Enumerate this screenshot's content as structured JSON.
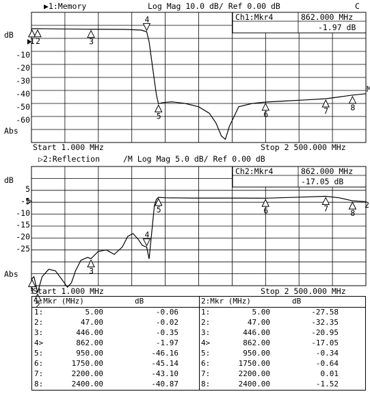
{
  "ch1": {
    "header_left": "▶1:Memory",
    "header_mid": "Log Mag  10.0 dB/  Ref   0.00 dB",
    "header_flag": "C",
    "marker_box_title": "Ch1:Mkr4",
    "marker_box_freq": "862.000 MHz",
    "marker_box_value": "-1.97 dB",
    "unit_label": "dB",
    "format_label": "Abs",
    "start": "Start 1.000 MHz",
    "stop": "Stop 2 500.000 MHz",
    "right_flag": "M",
    "y_ticks": [
      "-10",
      "-20",
      "-30",
      "-40",
      "-50",
      "-60"
    ]
  },
  "ch2": {
    "header_left": "▷2:Reflection",
    "header_mid": "/M Log Mag   5.0 dB/  Ref   0.00 dB",
    "marker_box_title": "Ch2:Mkr4",
    "marker_box_freq": "862.000 MHz",
    "marker_box_value": "-17.05 dB",
    "unit_label": "dB",
    "format_label": "Abs",
    "start": "Start 1.000 MHz",
    "stop": "Stop 2 500.000 MHz",
    "right_flag": "2",
    "y_ticks": [
      "5",
      "-5",
      "-10",
      "-15",
      "-20",
      "-25"
    ]
  },
  "table": {
    "ch1_head_a": "1:Mkr (MHz)",
    "ch1_head_b": "dB",
    "ch2_head_a": "2:Mkr (MHz)",
    "ch2_head_b": "dB",
    "ch1_rows": [
      {
        "id": "1:",
        "freq": "5.00",
        "val": "-0.06"
      },
      {
        "id": "2:",
        "freq": "47.00",
        "val": "-0.02"
      },
      {
        "id": "3:",
        "freq": "446.00",
        "val": "-0.35"
      },
      {
        "id": "4>",
        "freq": "862.00",
        "val": "-1.97"
      },
      {
        "id": "5:",
        "freq": "950.00",
        "val": "-46.16"
      },
      {
        "id": "6:",
        "freq": "1750.00",
        "val": "-45.14"
      },
      {
        "id": "7:",
        "freq": "2200.00",
        "val": "-43.10"
      },
      {
        "id": "8:",
        "freq": "2400.00",
        "val": "-40.87"
      }
    ],
    "ch2_rows": [
      {
        "id": "1:",
        "freq": "5.00",
        "val": "-27.58"
      },
      {
        "id": "2:",
        "freq": "47.00",
        "val": "-32.35"
      },
      {
        "id": "3:",
        "freq": "446.00",
        "val": "-20.95"
      },
      {
        "id": "4>",
        "freq": "862.00",
        "val": "-17.05"
      },
      {
        "id": "5:",
        "freq": "950.00",
        "val": "-0.34"
      },
      {
        "id": "6:",
        "freq": "1750.00",
        "val": "-0.64"
      },
      {
        "id": "7:",
        "freq": "2200.00",
        "val": "0.01"
      },
      {
        "id": "8:",
        "freq": "2400.00",
        "val": "-1.52"
      }
    ]
  },
  "chart_data": [
    {
      "type": "line",
      "xlim": [
        1,
        2500
      ],
      "ylim": [
        -70,
        10
      ],
      "grid": true,
      "markers": {
        "labels": [
          "1",
          "2",
          "3",
          "4",
          "5",
          "6",
          "7",
          "8"
        ],
        "x": [
          5,
          47,
          446,
          862,
          950,
          1750,
          2200,
          2400
        ],
        "y": [
          -0.06,
          -0.02,
          -0.35,
          -1.97,
          -46.16,
          -45.14,
          -43.1,
          -40.87
        ]
      },
      "series": [
        {
          "x": [
            1,
            5,
            47,
            200,
            446,
            700,
            820,
            862,
            880,
            900,
            920,
            935,
            950,
            980,
            1050,
            1150,
            1250,
            1330,
            1380,
            1420,
            1450,
            1480,
            1550,
            1650,
            1750,
            1900,
            2050,
            2200,
            2300,
            2400,
            2500
          ],
          "y": [
            -0.1,
            -0.06,
            -0.02,
            -0.2,
            -0.35,
            -0.5,
            -0.9,
            -1.97,
            -8,
            -20,
            -32,
            -41,
            -46.16,
            -45.5,
            -45,
            -46,
            -48,
            -52,
            -58,
            -66,
            -68,
            -60,
            -48,
            -46,
            -45.14,
            -44.5,
            -43.8,
            -43.1,
            -42,
            -40.87,
            -40
          ]
        }
      ]
    },
    {
      "type": "line",
      "xlim": [
        1,
        2500
      ],
      "ylim": [
        -30,
        10
      ],
      "grid": true,
      "markers": {
        "labels": [
          "1",
          "2",
          "3",
          "4",
          "5",
          "6",
          "7",
          "8"
        ],
        "x": [
          5,
          47,
          446,
          862,
          950,
          1750,
          2200,
          2400
        ],
        "y": [
          -27.58,
          -32.35,
          -20.95,
          -17.05,
          -0.34,
          -0.64,
          0.01,
          -1.52
        ]
      },
      "series": [
        {
          "x": [
            1,
            5,
            20,
            47,
            80,
            130,
            180,
            230,
            270,
            300,
            330,
            370,
            420,
            446,
            500,
            560,
            620,
            680,
            720,
            760,
            800,
            830,
            862,
            880,
            900,
            920,
            935,
            950,
            1000,
            1200,
            1500,
            1750,
            2000,
            2200,
            2300,
            2400,
            2500
          ],
          "y": [
            -32,
            -27.58,
            -27,
            -32.35,
            -27,
            -24.5,
            -25,
            -28,
            -30.5,
            -29,
            -25,
            -21.5,
            -20.5,
            -20.95,
            -18.5,
            -18,
            -19.5,
            -17,
            -13.5,
            -12.5,
            -14.5,
            -16.5,
            -17.05,
            -21,
            -12,
            -3,
            -1,
            -0.34,
            -0.5,
            -0.6,
            -0.6,
            -0.64,
            -0.3,
            0.01,
            -0.5,
            -1.52,
            -1.8
          ]
        }
      ]
    }
  ]
}
